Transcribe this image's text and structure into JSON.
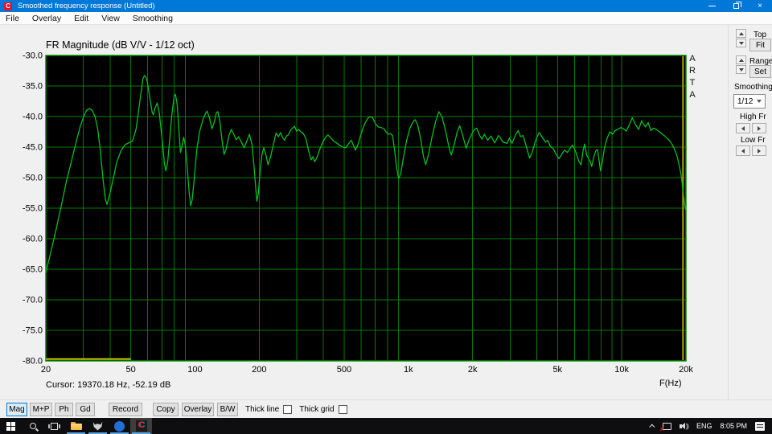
{
  "window": {
    "title": "Smoothed frequency response (Untitled)"
  },
  "menu": {
    "items": [
      "File",
      "Overlay",
      "Edit",
      "View",
      "Smoothing"
    ]
  },
  "chart": {
    "title": "FR Magnitude (dB V/V - 1/12 oct)",
    "watermark": "ARTA",
    "freq_axis_label": "F(Hz)",
    "cursor_readout": "Cursor: 19370.18 Hz, -52.19 dB"
  },
  "chart_data": {
    "type": "line",
    "title": "FR Magnitude (dB V/V - 1/12 oct)",
    "xlabel": "F(Hz)",
    "ylabel": "dB",
    "x_scale": "log",
    "xlim": [
      20,
      20000
    ],
    "ylim": [
      -80,
      -30
    ],
    "grid": true,
    "x_tick_labels": [
      "20",
      "50",
      "100",
      "200",
      "500",
      "1k",
      "2k",
      "5k",
      "10k",
      "20k"
    ],
    "x_tick_values": [
      20,
      50,
      100,
      200,
      500,
      1000,
      2000,
      5000,
      10000,
      20000
    ],
    "y_tick_labels": [
      "-30.0",
      "-35.0",
      "-40.0",
      "-45.0",
      "-50.0",
      "-55.0",
      "-60.0",
      "-65.0",
      "-70.0",
      "-75.0",
      "-80.0"
    ],
    "y_tick_values": [
      -30,
      -35,
      -40,
      -45,
      -50,
      -55,
      -60,
      -65,
      -70,
      -75,
      -80
    ],
    "colors": {
      "background": "#000000",
      "grid": "#007b00",
      "border": "#008a00",
      "line": "#00c020"
    },
    "cursor": {
      "freq_hz": 19370.18,
      "db": -52.19,
      "color": "#a8a800"
    },
    "low_freq_marker": {
      "from_hz": 20,
      "to_hz": 50,
      "db": -79.7,
      "color": "#c6c600"
    },
    "series": [
      {
        "name": "FR Magnitude",
        "points": [
          [
            20,
            -65.5
          ],
          [
            21,
            -62.5
          ],
          [
            22,
            -59.5
          ],
          [
            23,
            -56.5
          ],
          [
            24,
            -53.5
          ],
          [
            25,
            -50.5
          ],
          [
            26,
            -48.2
          ],
          [
            27,
            -45.8
          ],
          [
            28,
            -43.6
          ],
          [
            29,
            -41.6
          ],
          [
            30,
            -40.1
          ],
          [
            31,
            -39.0
          ],
          [
            32,
            -38.7
          ],
          [
            33,
            -39.0
          ],
          [
            34,
            -40.0
          ],
          [
            35,
            -42.0
          ],
          [
            36,
            -45.5
          ],
          [
            37,
            -50.0
          ],
          [
            38,
            -53.5
          ],
          [
            38.7,
            -54.4
          ],
          [
            40,
            -52.5
          ],
          [
            41.5,
            -50.0
          ],
          [
            43,
            -47.5
          ],
          [
            45,
            -45.6
          ],
          [
            47,
            -44.6
          ],
          [
            49,
            -44.3
          ],
          [
            51,
            -44.0
          ],
          [
            53,
            -42.0
          ],
          [
            55,
            -37.8
          ],
          [
            57,
            -33.8
          ],
          [
            58,
            -33.3
          ],
          [
            59,
            -33.6
          ],
          [
            60,
            -34.6
          ],
          [
            61.5,
            -37.0
          ],
          [
            63,
            -39.3
          ],
          [
            63.8,
            -39.7
          ],
          [
            65,
            -38.6
          ],
          [
            66.5,
            -37.8
          ],
          [
            68,
            -39.3
          ],
          [
            70,
            -43.5
          ],
          [
            72,
            -47.8
          ],
          [
            73,
            -48.9
          ],
          [
            74.5,
            -47.5
          ],
          [
            76,
            -44.0
          ],
          [
            78,
            -39.5
          ],
          [
            80,
            -36.6
          ],
          [
            81,
            -36.4
          ],
          [
            82.5,
            -38.0
          ],
          [
            84,
            -42.0
          ],
          [
            85.5,
            -45.9
          ],
          [
            87,
            -44.8
          ],
          [
            88.5,
            -43.4
          ],
          [
            90,
            -44.6
          ],
          [
            92,
            -48.5
          ],
          [
            94,
            -52.5
          ],
          [
            95.5,
            -54.6
          ],
          [
            97,
            -53.6
          ],
          [
            99,
            -50.5
          ],
          [
            102,
            -45.5
          ],
          [
            105,
            -42.5
          ],
          [
            109,
            -40.5
          ],
          [
            112,
            -39.5
          ],
          [
            114,
            -39.1
          ],
          [
            117,
            -40.3
          ],
          [
            120,
            -42.0
          ],
          [
            123,
            -41.0
          ],
          [
            126,
            -39.4
          ],
          [
            128,
            -39.2
          ],
          [
            131,
            -41.0
          ],
          [
            134,
            -44.0
          ],
          [
            137,
            -46.2
          ],
          [
            140,
            -45.3
          ],
          [
            144,
            -43.2
          ],
          [
            148,
            -42.1
          ],
          [
            152,
            -42.9
          ],
          [
            156,
            -43.8
          ],
          [
            160,
            -43.3
          ],
          [
            165,
            -44.2
          ],
          [
            170,
            -45.1
          ],
          [
            175,
            -44.0
          ],
          [
            180,
            -42.9
          ],
          [
            185,
            -44.6
          ],
          [
            189,
            -48.0
          ],
          [
            193,
            -52.0
          ],
          [
            195,
            -53.9
          ],
          [
            198,
            -52.6
          ],
          [
            202,
            -49.0
          ],
          [
            206,
            -46.3
          ],
          [
            210,
            -45.1
          ],
          [
            215,
            -46.3
          ],
          [
            220,
            -47.9
          ],
          [
            226,
            -46.6
          ],
          [
            233,
            -44.6
          ],
          [
            240,
            -42.7
          ],
          [
            246,
            -43.3
          ],
          [
            252,
            -42.6
          ],
          [
            257,
            -43.4
          ],
          [
            263,
            -43.9
          ],
          [
            268,
            -43.2
          ],
          [
            274,
            -43.0
          ],
          [
            281,
            -42.2
          ],
          [
            288,
            -41.8
          ],
          [
            293,
            -41.6
          ],
          [
            299,
            -42.4
          ],
          [
            306,
            -42.1
          ],
          [
            313,
            -42.5
          ],
          [
            321,
            -42.7
          ],
          [
            331,
            -43.6
          ],
          [
            341,
            -45.6
          ],
          [
            350,
            -47.1
          ],
          [
            357,
            -46.6
          ],
          [
            364,
            -47.4
          ],
          [
            373,
            -46.7
          ],
          [
            384,
            -45.4
          ],
          [
            396,
            -44.3
          ],
          [
            409,
            -43.4
          ],
          [
            420,
            -43.0
          ],
          [
            433,
            -43.5
          ],
          [
            447,
            -44.0
          ],
          [
            460,
            -44.3
          ],
          [
            476,
            -44.7
          ],
          [
            492,
            -45.0
          ],
          [
            510,
            -45.1
          ],
          [
            526,
            -44.4
          ],
          [
            540,
            -43.9
          ],
          [
            553,
            -44.7
          ],
          [
            565,
            -45.5
          ],
          [
            580,
            -44.6
          ],
          [
            600,
            -42.9
          ],
          [
            622,
            -41.3
          ],
          [
            645,
            -40.3
          ],
          [
            662,
            -40.0
          ],
          [
            680,
            -40.2
          ],
          [
            700,
            -41.1
          ],
          [
            722,
            -41.7
          ],
          [
            745,
            -41.8
          ],
          [
            768,
            -42.0
          ],
          [
            790,
            -42.6
          ],
          [
            806,
            -42.9
          ],
          [
            825,
            -42.8
          ],
          [
            843,
            -43.1
          ],
          [
            862,
            -45.5
          ],
          [
            882,
            -48.5
          ],
          [
            900,
            -50.1
          ],
          [
            920,
            -49.4
          ],
          [
            948,
            -46.8
          ],
          [
            980,
            -44.0
          ],
          [
            1015,
            -42.0
          ],
          [
            1050,
            -40.9
          ],
          [
            1075,
            -40.5
          ],
          [
            1105,
            -41.3
          ],
          [
            1140,
            -43.5
          ],
          [
            1175,
            -46.4
          ],
          [
            1205,
            -47.9
          ],
          [
            1242,
            -46.3
          ],
          [
            1290,
            -43.4
          ],
          [
            1340,
            -40.9
          ],
          [
            1390,
            -39.2
          ],
          [
            1440,
            -40.1
          ],
          [
            1500,
            -42.6
          ],
          [
            1555,
            -45.3
          ],
          [
            1590,
            -46.3
          ],
          [
            1640,
            -44.6
          ],
          [
            1695,
            -42.5
          ],
          [
            1740,
            -41.5
          ],
          [
            1800,
            -43.1
          ],
          [
            1865,
            -45.2
          ],
          [
            1925,
            -43.8
          ],
          [
            2020,
            -42.3
          ],
          [
            2090,
            -41.9
          ],
          [
            2160,
            -43.1
          ],
          [
            2215,
            -43.7
          ],
          [
            2270,
            -42.9
          ],
          [
            2350,
            -43.9
          ],
          [
            2440,
            -43.2
          ],
          [
            2540,
            -44.3
          ],
          [
            2650,
            -43.1
          ],
          [
            2780,
            -44.2
          ],
          [
            2900,
            -44.4
          ],
          [
            2980,
            -43.5
          ],
          [
            3060,
            -44.4
          ],
          [
            3180,
            -43.0
          ],
          [
            3270,
            -42.3
          ],
          [
            3360,
            -43.3
          ],
          [
            3450,
            -43.1
          ],
          [
            3570,
            -44.9
          ],
          [
            3700,
            -46.8
          ],
          [
            3810,
            -45.8
          ],
          [
            3950,
            -43.9
          ],
          [
            4100,
            -42.6
          ],
          [
            4260,
            -43.5
          ],
          [
            4400,
            -44.2
          ],
          [
            4500,
            -43.9
          ],
          [
            4630,
            -44.9
          ],
          [
            4780,
            -45.3
          ],
          [
            4930,
            -46.2
          ],
          [
            5080,
            -46.9
          ],
          [
            5250,
            -46.1
          ],
          [
            5400,
            -45.5
          ],
          [
            5560,
            -45.9
          ],
          [
            5750,
            -45.1
          ],
          [
            5900,
            -44.7
          ],
          [
            6100,
            -45.9
          ],
          [
            6300,
            -47.4
          ],
          [
            6450,
            -47.9
          ],
          [
            6600,
            -45.5
          ],
          [
            6700,
            -44.5
          ],
          [
            6850,
            -46.3
          ],
          [
            7000,
            -46.9
          ],
          [
            7120,
            -47.4
          ],
          [
            7230,
            -48.2
          ],
          [
            7400,
            -46.6
          ],
          [
            7560,
            -45.6
          ],
          [
            7700,
            -45.4
          ],
          [
            7850,
            -47.4
          ],
          [
            7950,
            -48.9
          ],
          [
            8100,
            -47.6
          ],
          [
            8300,
            -45.1
          ],
          [
            8550,
            -43.5
          ],
          [
            8800,
            -42.5
          ],
          [
            9050,
            -42.9
          ],
          [
            9300,
            -42.3
          ],
          [
            9600,
            -42.1
          ],
          [
            9900,
            -41.8
          ],
          [
            10200,
            -42.0
          ],
          [
            10500,
            -42.4
          ],
          [
            10800,
            -41.5
          ],
          [
            11200,
            -40.2
          ],
          [
            11600,
            -41.3
          ],
          [
            12000,
            -42.1
          ],
          [
            12400,
            -40.7
          ],
          [
            12900,
            -41.7
          ],
          [
            13300,
            -41.0
          ],
          [
            13700,
            -42.3
          ],
          [
            14100,
            -41.9
          ],
          [
            14500,
            -42.1
          ],
          [
            14900,
            -42.4
          ],
          [
            15400,
            -42.8
          ],
          [
            15900,
            -43.2
          ],
          [
            16400,
            -43.6
          ],
          [
            16900,
            -44.1
          ],
          [
            17300,
            -44.7
          ],
          [
            17700,
            -45.4
          ],
          [
            18100,
            -46.3
          ],
          [
            18500,
            -47.6
          ],
          [
            18900,
            -49.2
          ],
          [
            19200,
            -50.9
          ],
          [
            19370,
            -52.2
          ],
          [
            19600,
            -53.6
          ],
          [
            19800,
            -54.6
          ],
          [
            20000,
            -55.3
          ]
        ]
      }
    ]
  },
  "side_panel": {
    "top_label": "Top",
    "fit_button": "Fit",
    "range_label": "Range",
    "set_button": "Set",
    "smoothing_label": "Smoothing",
    "smoothing_value": "1/12",
    "high_fr_label": "High Fr",
    "low_fr_label": "Low Fr"
  },
  "toolbar": {
    "buttons": [
      "Mag",
      "M+P",
      "Ph",
      "Gd",
      "Record",
      "Copy",
      "Overlay",
      "B/W"
    ],
    "active_button": "Mag",
    "checkboxes": [
      {
        "label": "Thick line",
        "checked": false
      },
      {
        "label": "Thick grid",
        "checked": false
      }
    ]
  },
  "taskbar": {
    "language": "ENG",
    "time": "8:05 PM"
  }
}
